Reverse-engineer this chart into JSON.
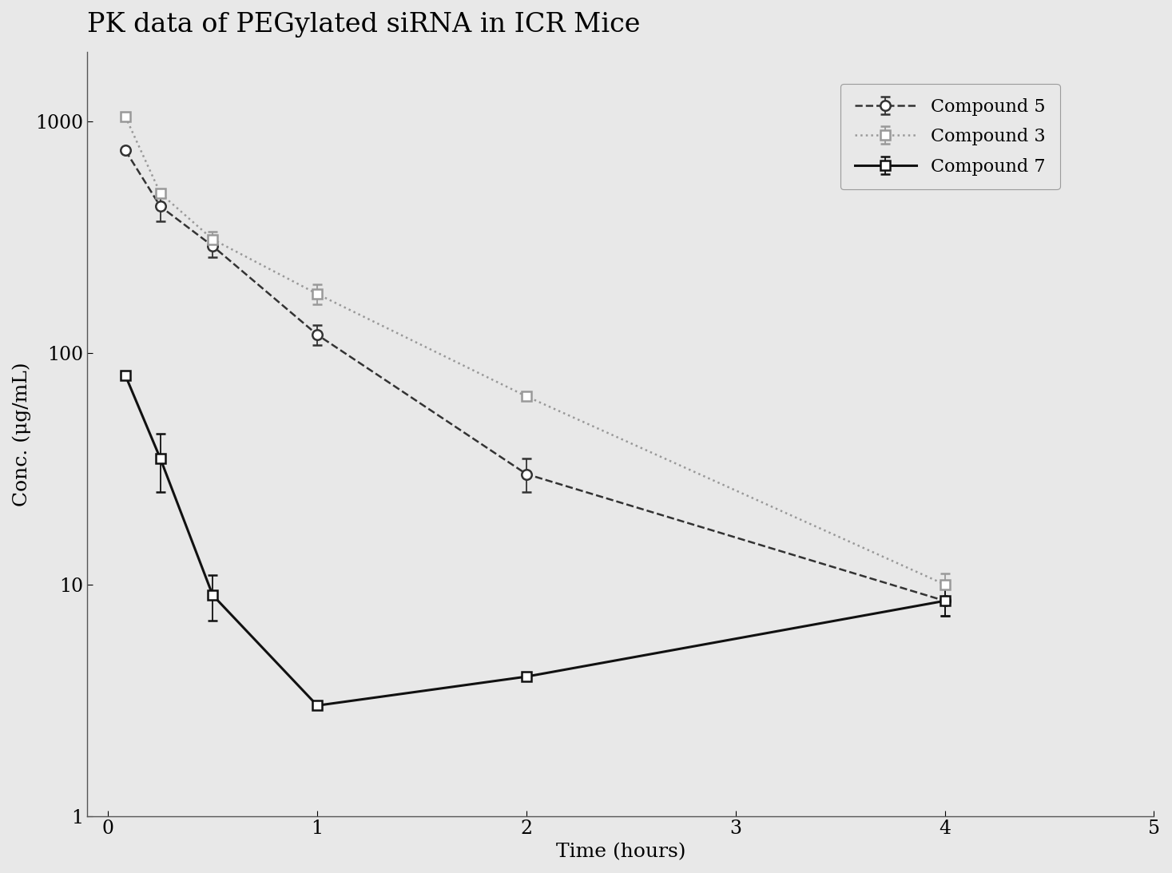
{
  "title": "PK data of PEGylated siRNA in ICR Mice",
  "xlabel": "Time (hours)",
  "ylabel": "Conc. (μg/mL)",
  "xlim": [
    -0.1,
    5
  ],
  "ylim": [
    1,
    2000
  ],
  "xticks": [
    0,
    1,
    2,
    3,
    4,
    5
  ],
  "yticks": [
    1,
    10,
    100,
    1000
  ],
  "background_color": "#e8e8e8",
  "title_fontsize": 24,
  "label_fontsize": 18,
  "tick_fontsize": 17,
  "legend_fontsize": 16,
  "compound5": {
    "label": "Compound 5",
    "x": [
      0.083,
      0.25,
      0.5,
      1,
      2,
      4
    ],
    "y": [
      750,
      430,
      290,
      120,
      30,
      8.5
    ],
    "yerr_lo": [
      0,
      60,
      30,
      12,
      5,
      1.2
    ],
    "yerr_hi": [
      0,
      60,
      30,
      12,
      5,
      1.2
    ],
    "color": "#333333",
    "linestyle": "--",
    "marker": "o",
    "markersize": 9,
    "linewidth": 1.8
  },
  "compound3": {
    "label": "Compound 3",
    "x": [
      0.083,
      0.25,
      0.5,
      1,
      2,
      4
    ],
    "y": [
      1050,
      490,
      310,
      180,
      65,
      10
    ],
    "yerr_lo": [
      0,
      0,
      25,
      18,
      0,
      1.2
    ],
    "yerr_hi": [
      0,
      0,
      25,
      18,
      0,
      1.2
    ],
    "color": "#999999",
    "linestyle": ":",
    "marker": "s",
    "markersize": 9,
    "linewidth": 1.8
  },
  "compound7": {
    "label": "Compound 7",
    "x": [
      0.083,
      0.25,
      0.5,
      1,
      2,
      4
    ],
    "y": [
      80,
      35,
      9,
      3,
      4,
      8.5
    ],
    "yerr_lo": [
      0,
      10,
      2,
      0,
      0,
      1.2
    ],
    "yerr_hi": [
      0,
      10,
      2,
      0,
      0,
      1.2
    ],
    "color": "#111111",
    "linestyle": "-",
    "marker": "s",
    "markersize": 9,
    "linewidth": 2.2
  }
}
